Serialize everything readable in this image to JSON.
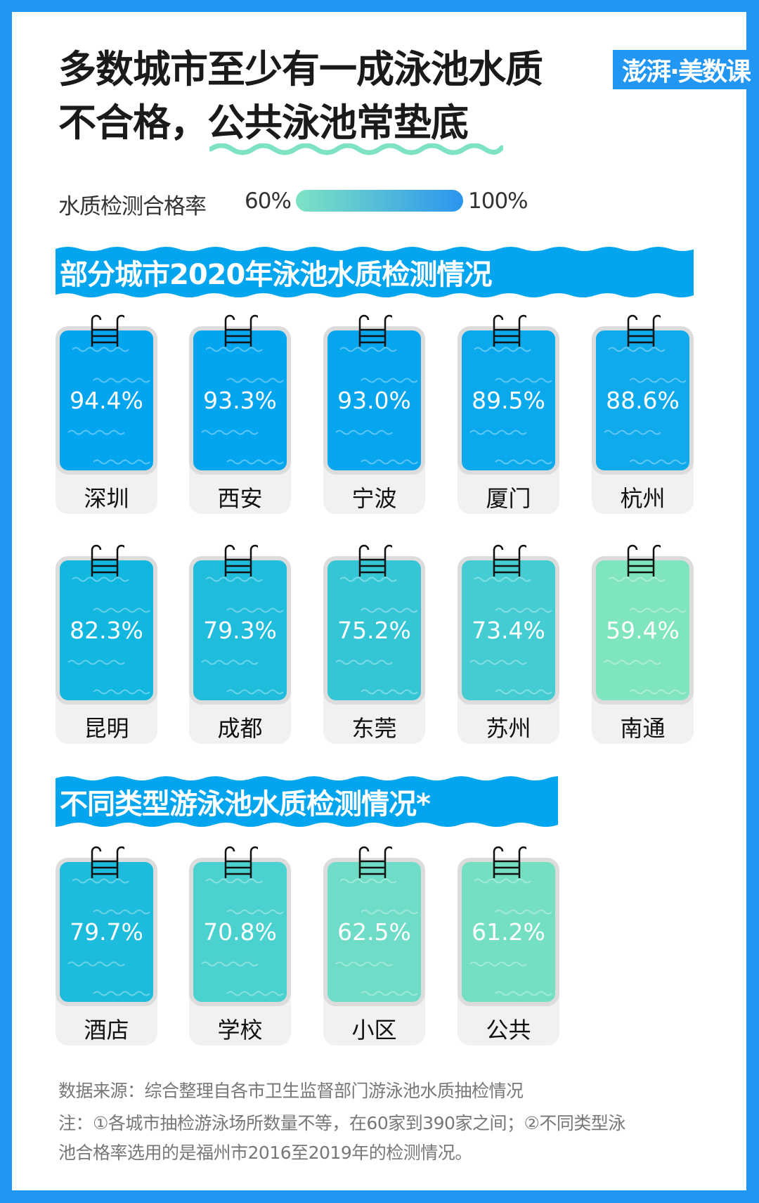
{
  "title": {
    "line1": "多数城市至少有一成泳池水质",
    "line2a": "不合格，",
    "line2b": "公共泳池常垫底"
  },
  "logo": "澎湃·美数课",
  "legend": {
    "label": "水质检测合格率",
    "min": "60%",
    "max": "100%",
    "min_color": "#7ee3c4",
    "max_color": "#2a95ee"
  },
  "section1": {
    "title": "部分城市2020年泳池水质检测情况",
    "items": [
      {
        "name": "深圳",
        "value": "94.4%",
        "color": "#03a5ef"
      },
      {
        "name": "西安",
        "value": "93.3%",
        "color": "#03a5ef"
      },
      {
        "name": "宁波",
        "value": "93.0%",
        "color": "#05a6ee"
      },
      {
        "name": "厦门",
        "value": "89.5%",
        "color": "#0aa9ec"
      },
      {
        "name": "杭州",
        "value": "88.6%",
        "color": "#0eaaeb"
      },
      {
        "name": "昆明",
        "value": "82.3%",
        "color": "#12b7e0"
      },
      {
        "name": "成都",
        "value": "79.3%",
        "color": "#1fbcdc"
      },
      {
        "name": "东莞",
        "value": "75.2%",
        "color": "#35c6d6"
      },
      {
        "name": "苏州",
        "value": "73.4%",
        "color": "#43cdd3"
      },
      {
        "name": "南通",
        "value": "59.4%",
        "color": "#7fe5bf"
      }
    ]
  },
  "section2": {
    "title": "不同类型游泳池水质检测情况*",
    "items": [
      {
        "name": "酒店",
        "value": "79.7%",
        "color": "#1dbbdc"
      },
      {
        "name": "学校",
        "value": "70.8%",
        "color": "#4bd1cf"
      },
      {
        "name": "小区",
        "value": "62.5%",
        "color": "#6edcc6"
      },
      {
        "name": "公共",
        "value": "61.2%",
        "color": "#74dfc3"
      }
    ]
  },
  "footer": {
    "source": "数据来源：综合整理自各市卫生监督部门游泳池水质抽检情况",
    "note1": "注：①各城市抽检游泳场所数量不等，在60家到390家之间；②不同类型泳",
    "note2": "池合格率选用的是福州市2016至2019年的检测情况。"
  }
}
